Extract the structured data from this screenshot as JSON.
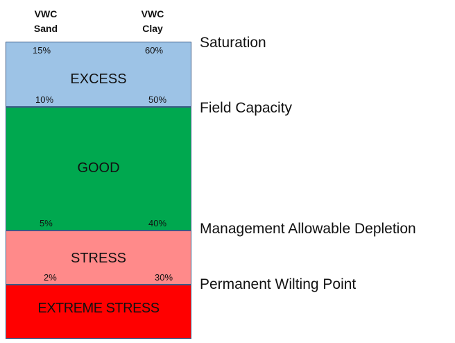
{
  "columns": {
    "sand": "VWC\nSand",
    "clay": "VWC\nClay"
  },
  "zones": [
    {
      "name": "EXCESS",
      "color": "#9dc3e6",
      "top_sand": "15%",
      "top_clay": "60%",
      "bottom_sand": "10%",
      "bottom_clay": "50%"
    },
    {
      "name": "GOOD",
      "color": "#00a84f",
      "bottom_sand": "5%",
      "bottom_clay": "40%"
    },
    {
      "name": "STRESS",
      "color": "#ff8a8a",
      "bottom_sand": "2%",
      "bottom_clay": "30%"
    },
    {
      "name": "EXTREME STRESS",
      "color": "#ff0000"
    }
  ],
  "levels": [
    "Saturation",
    "Field Capacity",
    "Management Allowable Depletion",
    "Permanent Wilting Point"
  ]
}
